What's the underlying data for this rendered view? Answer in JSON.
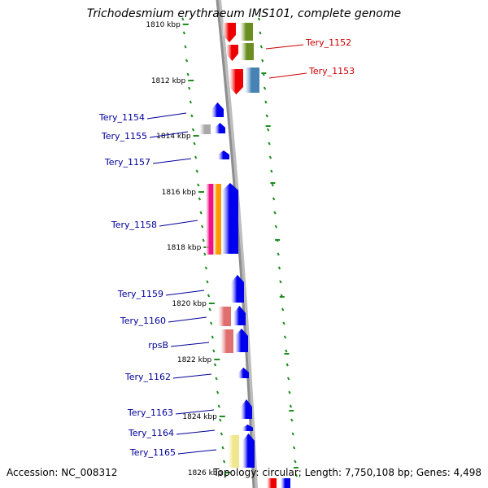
{
  "title": "Trichodesmium erythraeum IMS101, complete genome",
  "accession": "Accession: NC_008312",
  "summary": "Topology: circular; Length: 7,750,108 bp; Genes: 4,498",
  "colors": {
    "backbone": "#8e8e8e",
    "ticks": "#1f8c1f",
    "tick_text": "#000000",
    "label_blue": "#000099",
    "label_red": "#cc0000",
    "gene_blue": "#0000ee",
    "gene_red": "#ee0000",
    "gene_olive": "#6b8e23",
    "gene_steel": "#4682b4",
    "gene_gray": "#a9a9a9",
    "gene_magenta": "#ee1188",
    "gene_orange": "#ff9900",
    "gene_salmon": "#e07070",
    "gene_khaki": "#f0e68c"
  },
  "position_labels": [
    {
      "text": "1810 kbp",
      "kbp": 1810
    },
    {
      "text": "1812 kbp",
      "kbp": 1812
    },
    {
      "text": "1814 kbp",
      "kbp": 1814
    },
    {
      "text": "1816 kbp",
      "kbp": 1816
    },
    {
      "text": "1818 kbp",
      "kbp": 1818
    },
    {
      "text": "1820 kbp",
      "kbp": 1820
    },
    {
      "text": "1822 kbp",
      "kbp": 1822
    },
    {
      "text": "1824 kbp",
      "kbp": 1824
    },
    {
      "text": "1826 kbp",
      "kbp": 1826
    }
  ],
  "gene_labels": [
    {
      "text": "Tery_1152",
      "color": "red"
    },
    {
      "text": "Tery_1153",
      "color": "red"
    },
    {
      "text": "Tery_1154",
      "color": "blue"
    },
    {
      "text": "Tery_1155",
      "color": "blue"
    },
    {
      "text": "Tery_1157",
      "color": "blue"
    },
    {
      "text": "Tery_1158",
      "color": "blue"
    },
    {
      "text": "Tery_1159",
      "color": "blue"
    },
    {
      "text": "Tery_1160",
      "color": "blue"
    },
    {
      "text": "rpsB",
      "color": "blue"
    },
    {
      "text": "Tery_1162",
      "color": "blue"
    },
    {
      "text": "Tery_1163",
      "color": "blue"
    },
    {
      "text": "Tery_1164",
      "color": "blue"
    },
    {
      "text": "Tery_1165",
      "color": "blue"
    }
  ]
}
